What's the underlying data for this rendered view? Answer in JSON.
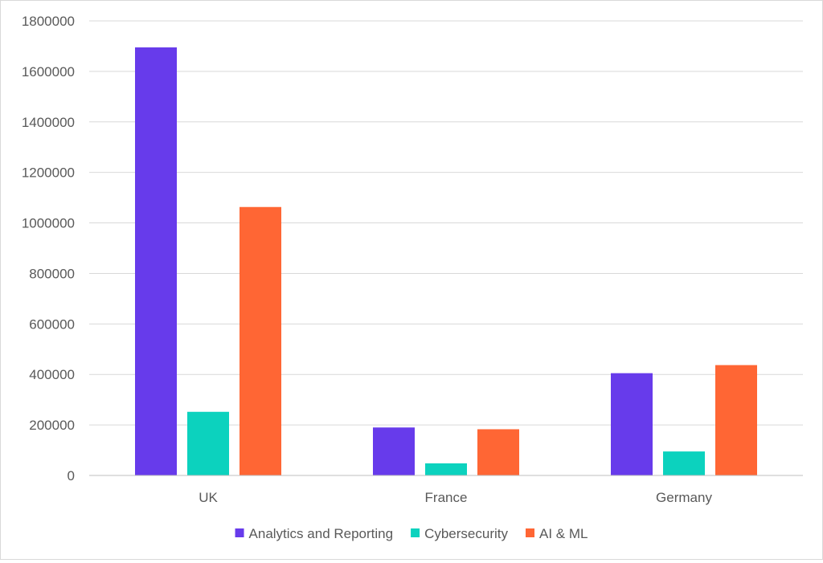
{
  "chart_data": {
    "type": "bar",
    "categories": [
      "UK",
      "France",
      "Germany"
    ],
    "series": [
      {
        "name": "Analytics and Reporting",
        "values": [
          1695000,
          190000,
          405000
        ],
        "color": "#673BEB"
      },
      {
        "name": "Cybersecurity",
        "values": [
          252000,
          48000,
          95000
        ],
        "color": "#0CD2BE"
      },
      {
        "name": "AI & ML",
        "values": [
          1063000,
          183000,
          437000
        ],
        "color": "#FF6634"
      }
    ],
    "ylim": [
      0,
      1800000
    ],
    "yticks": [
      0,
      200000,
      400000,
      600000,
      800000,
      1000000,
      1200000,
      1400000,
      1600000,
      1800000
    ],
    "ytick_labels": [
      "0",
      "200000",
      "400000",
      "600000",
      "800000",
      "1000000",
      "1200000",
      "1400000",
      "1600000",
      "1800000"
    ],
    "grid": true,
    "legend": "bottom",
    "gridline_color": "#d9d9d9",
    "axis_color": "#bfbfbf"
  }
}
